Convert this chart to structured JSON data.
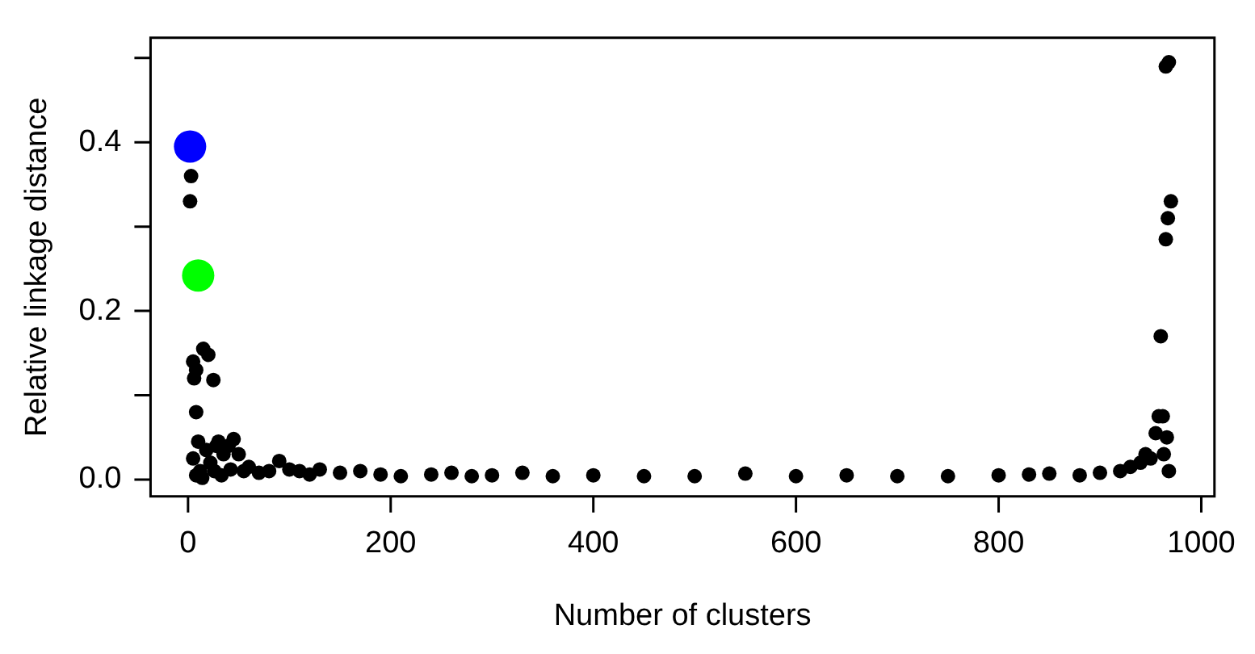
{
  "chart_data": {
    "type": "scatter",
    "xlabel": "Number of clusters",
    "ylabel": "Relative linkage distance",
    "xlim": [
      -37,
      1013
    ],
    "ylim": [
      -0.02,
      0.524
    ],
    "xticks": [
      0,
      200,
      400,
      600,
      800,
      1000
    ],
    "yticks": [
      {
        "value": 0,
        "label": "0.0"
      },
      {
        "value": 0.1,
        "label": null
      },
      0.2,
      {
        "value": 0.3,
        "label": null
      },
      0.4,
      {
        "value": 0.5,
        "label": null
      }
    ],
    "grid": false,
    "legend": false,
    "marker": "circle",
    "series": [
      {
        "color": "#000000",
        "x": [
          3,
          2,
          5,
          8,
          6,
          15,
          20,
          25,
          8,
          5,
          10,
          12,
          18,
          22,
          28,
          30,
          35,
          40,
          45,
          50,
          8,
          14,
          26,
          33,
          42,
          55,
          60,
          70,
          80,
          90,
          100,
          110,
          120,
          130,
          150,
          170,
          190,
          210,
          240,
          260,
          280,
          300,
          330,
          360,
          400,
          450,
          500,
          550,
          600,
          650,
          700,
          750,
          800,
          830,
          850,
          880,
          900,
          920,
          930,
          940,
          945,
          950,
          955,
          958,
          960,
          962,
          963,
          965,
          966,
          967,
          968,
          970,
          965,
          968
        ],
        "values": [
          0.36,
          0.33,
          0.14,
          0.13,
          0.12,
          0.155,
          0.148,
          0.118,
          0.08,
          0.025,
          0.045,
          0.01,
          0.035,
          0.02,
          0.04,
          0.045,
          0.03,
          0.04,
          0.048,
          0.03,
          0.005,
          0.002,
          0.01,
          0.005,
          0.012,
          0.01,
          0.015,
          0.008,
          0.01,
          0.022,
          0.012,
          0.01,
          0.006,
          0.012,
          0.008,
          0.01,
          0.006,
          0.004,
          0.006,
          0.008,
          0.004,
          0.005,
          0.008,
          0.004,
          0.005,
          0.004,
          0.004,
          0.007,
          0.004,
          0.005,
          0.004,
          0.004,
          0.005,
          0.006,
          0.007,
          0.005,
          0.008,
          0.01,
          0.015,
          0.02,
          0.03,
          0.025,
          0.055,
          0.075,
          0.17,
          0.075,
          0.03,
          0.285,
          0.05,
          0.31,
          0.01,
          0.33,
          0.49,
          0.495
        ]
      },
      {
        "color": "#0000ff",
        "x": [
          2
        ],
        "values": [
          0.395
        ]
      },
      {
        "color": "#00ff00",
        "x": [
          10
        ],
        "values": [
          0.242
        ]
      }
    ]
  }
}
